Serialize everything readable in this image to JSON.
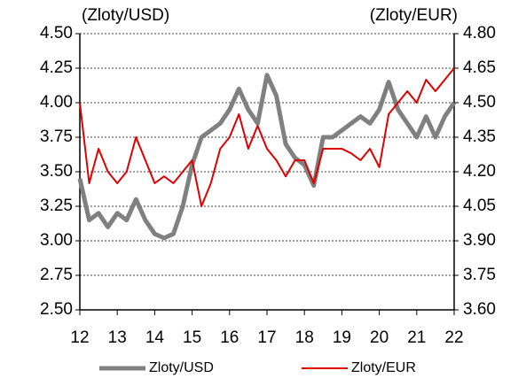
{
  "chart_data": {
    "type": "line",
    "y_label": "(Zloty/USD)",
    "y2_label": "(Zloty/EUR)",
    "x": [
      12,
      12.25,
      12.5,
      12.75,
      13,
      13.25,
      13.5,
      13.75,
      14,
      14.25,
      14.5,
      14.75,
      15,
      15.25,
      15.5,
      15.75,
      16,
      16.25,
      16.5,
      16.75,
      17,
      17.25,
      17.5,
      17.75,
      18,
      18.25,
      18.5,
      18.75,
      19,
      19.25,
      19.5,
      19.75,
      20,
      20.25,
      20.5,
      20.75,
      21,
      21.25,
      21.5,
      21.75,
      22
    ],
    "series": [
      {
        "name": "Zloty/USD",
        "color": "#808080",
        "values": [
          3.45,
          3.15,
          3.2,
          3.1,
          3.2,
          3.15,
          3.3,
          3.15,
          3.05,
          3.02,
          3.05,
          3.25,
          3.55,
          3.75,
          3.8,
          3.85,
          3.95,
          4.1,
          3.95,
          3.85,
          4.2,
          4.05,
          3.7,
          3.6,
          3.55,
          3.4,
          3.75,
          3.75,
          3.8,
          3.85,
          3.9,
          3.85,
          3.95,
          4.15,
          3.95,
          3.85,
          3.75,
          3.9,
          3.75,
          3.9,
          4.0
        ]
      },
      {
        "name": "Zloty/EUR",
        "color": "#e00000",
        "axis": "y2",
        "values": [
          4.5,
          4.15,
          4.3,
          4.2,
          4.15,
          4.2,
          4.35,
          4.25,
          4.15,
          4.18,
          4.15,
          4.2,
          4.25,
          4.05,
          4.15,
          4.3,
          4.35,
          4.45,
          4.3,
          4.4,
          4.3,
          4.25,
          4.18,
          4.25,
          4.25,
          4.15,
          4.3,
          4.3,
          4.3,
          4.28,
          4.25,
          4.3,
          4.22,
          4.45,
          4.5,
          4.55,
          4.5,
          4.6,
          4.55,
          4.6,
          4.65
        ]
      }
    ],
    "xlim": [
      12,
      22
    ],
    "xticks": [
      12,
      13,
      14,
      15,
      16,
      17,
      18,
      19,
      20,
      21,
      22
    ],
    "ylim": [
      2.5,
      4.5
    ],
    "yticks": [
      {
        "value": 2.5,
        "label": "2.50"
      },
      2.75,
      {
        "value": 3,
        "label": "3.00"
      },
      3.25,
      {
        "value": 3.5,
        "label": "3.50"
      },
      3.75,
      {
        "value": 4,
        "label": "4.00"
      },
      4.25,
      {
        "value": 4.5,
        "label": "4.50"
      }
    ],
    "y2lim": [
      3.6,
      4.8
    ],
    "y2ticks": [
      {
        "value": 3.6,
        "label": "3.60"
      },
      3.75,
      {
        "value": 3.9,
        "label": "3.90"
      },
      4.05,
      {
        "value": 4.2,
        "label": "4.20"
      },
      4.35,
      {
        "value": 4.5,
        "label": "4.50"
      },
      4.65,
      {
        "value": 4.8,
        "label": "4.80"
      }
    ],
    "grid": true,
    "legend": "bottom"
  }
}
